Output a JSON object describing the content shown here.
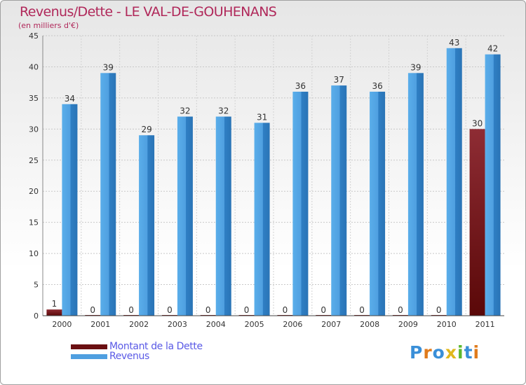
{
  "chart_data": {
    "type": "bar",
    "title": "Revenus/Dette - LE VAL-DE-GOUHENANS",
    "subtitle": "(en milliers d'€)",
    "categories": [
      "2000",
      "2001",
      "2002",
      "2003",
      "2004",
      "2005",
      "2006",
      "2007",
      "2008",
      "2009",
      "2010",
      "2011"
    ],
    "series": [
      {
        "name": "Montant de la Dette",
        "values": [
          1,
          0,
          0,
          0,
          0,
          0,
          0,
          0,
          0,
          0,
          0,
          30
        ],
        "color": "#7a1a1e"
      },
      {
        "name": "Revenus",
        "values": [
          34,
          39,
          29,
          32,
          32,
          31,
          36,
          37,
          36,
          39,
          43,
          42
        ],
        "color": "#4f9fe0"
      }
    ],
    "ylim": [
      0,
      45
    ],
    "yticks": [
      0,
      5,
      10,
      15,
      20,
      25,
      30,
      35,
      40,
      45
    ],
    "grid": true,
    "legend_position": "bottom-left"
  },
  "logo": {
    "text": "Proxiti"
  }
}
